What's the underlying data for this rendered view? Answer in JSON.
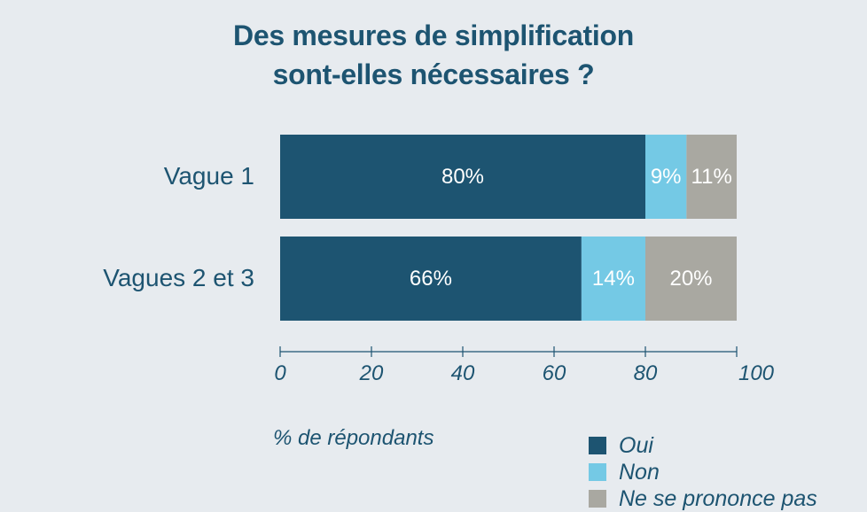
{
  "chart_data": {
    "type": "bar",
    "orientation": "horizontal",
    "stacked": true,
    "title_lines": [
      "Des mesures de simplification",
      "sont-elles nécessaires ?"
    ],
    "categories": [
      "Vague 1",
      "Vagues 2 et 3"
    ],
    "series": [
      {
        "name": "Oui",
        "values": [
          80,
          66
        ],
        "labels": [
          "80%",
          "66%"
        ],
        "color": "#1d5471"
      },
      {
        "name": "Non",
        "values": [
          9,
          14
        ],
        "labels": [
          "9%",
          "14%"
        ],
        "color": "#74c9e5"
      },
      {
        "name": "Ne se prononce pas",
        "values": [
          11,
          20
        ],
        "labels": [
          "11%",
          "20%"
        ],
        "color": "#a9a8a1"
      }
    ],
    "xlabel": "% de répondants",
    "xlim": [
      0,
      100
    ],
    "xticks": [
      0,
      20,
      40,
      60,
      80,
      100
    ],
    "grid": false,
    "legend": "bottom-right"
  }
}
